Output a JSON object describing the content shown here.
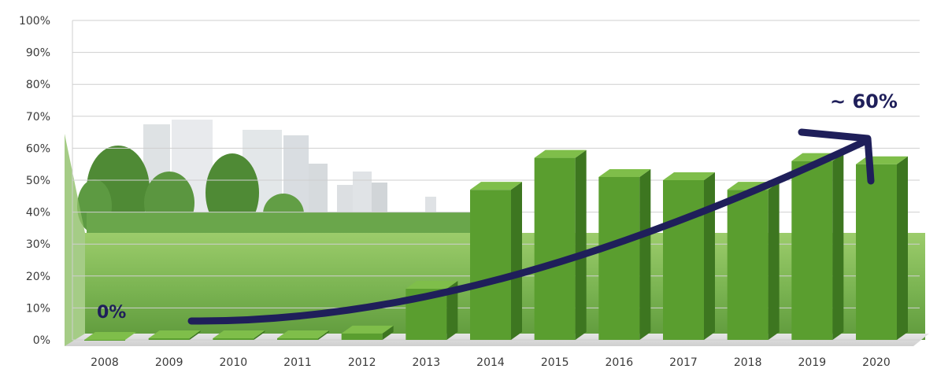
{
  "chart_data": {
    "type": "bar",
    "title": "",
    "xlabel": "",
    "ylabel": "",
    "categories": [
      "2008",
      "2009",
      "2010",
      "2011",
      "2012",
      "2013",
      "2014",
      "2015",
      "2016",
      "2017",
      "2018",
      "2019",
      "2020"
    ],
    "values": [
      0,
      0.5,
      0.5,
      0.5,
      2,
      16,
      47,
      57,
      51,
      50,
      47,
      56,
      55
    ],
    "y_ticks": [
      "0%",
      "10%",
      "20%",
      "30%",
      "40%",
      "50%",
      "60%",
      "70%",
      "80%",
      "90%",
      "100%"
    ],
    "ylim": [
      0,
      100
    ],
    "grid": true,
    "bar_color": "#5a9e2f",
    "bar_side_color": "#3d7620",
    "bar_top_color": "#7fbe4a",
    "annotations": {
      "start_label": "0%",
      "end_label": "~ 60%",
      "arrow_color": "#1f1f5a"
    }
  }
}
